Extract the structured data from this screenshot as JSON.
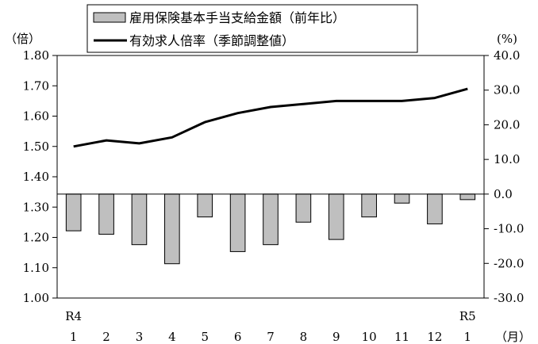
{
  "chart_data": {
    "type": "bar+line",
    "legend": {
      "placement": "top",
      "entries": [
        {
          "name": "雇用保険基本手当支給金額（前年比）",
          "marker": "bar",
          "color": "#bfbfbf"
        },
        {
          "name": "有効求人倍率（季節調整値）",
          "marker": "line",
          "color": "#000000"
        }
      ]
    },
    "left_axis": {
      "unit": "（倍）",
      "range": [
        1.0,
        1.8
      ],
      "ticks": [
        "1.00",
        "1.10",
        "1.20",
        "1.30",
        "1.40",
        "1.50",
        "1.60",
        "1.70",
        "1.80"
      ]
    },
    "right_axis": {
      "unit": "(%)",
      "range": [
        -30,
        40
      ],
      "ticks": [
        "-30.0",
        "-20.0",
        "-10.0",
        "0.0",
        "10.0",
        "20.0",
        "30.0",
        "40.0"
      ]
    },
    "x_axis": {
      "unit": "（月）",
      "year_labels": [
        {
          "index": 0,
          "label": "R4"
        },
        {
          "index": 12,
          "label": "R5"
        }
      ],
      "categories": [
        "1",
        "2",
        "3",
        "4",
        "5",
        "6",
        "7",
        "8",
        "9",
        "10",
        "11",
        "12",
        "1"
      ]
    },
    "series": [
      {
        "name": "雇用保険基本手当支給金額（前年比）",
        "type": "bar",
        "axis": "right",
        "color": "#bfbfbf",
        "values": [
          -10.6,
          -11.6,
          -14.6,
          -20.1,
          -6.6,
          -16.6,
          -14.6,
          -8.1,
          -13.1,
          -6.6,
          -2.6,
          -8.6,
          -1.6
        ]
      },
      {
        "name": "有効求人倍率（季節調整値）",
        "type": "line",
        "axis": "left",
        "color": "#000000",
        "values": [
          1.5,
          1.52,
          1.51,
          1.53,
          1.58,
          1.61,
          1.63,
          1.64,
          1.65,
          1.65,
          1.65,
          1.66,
          1.69
        ]
      }
    ],
    "grid": false
  }
}
